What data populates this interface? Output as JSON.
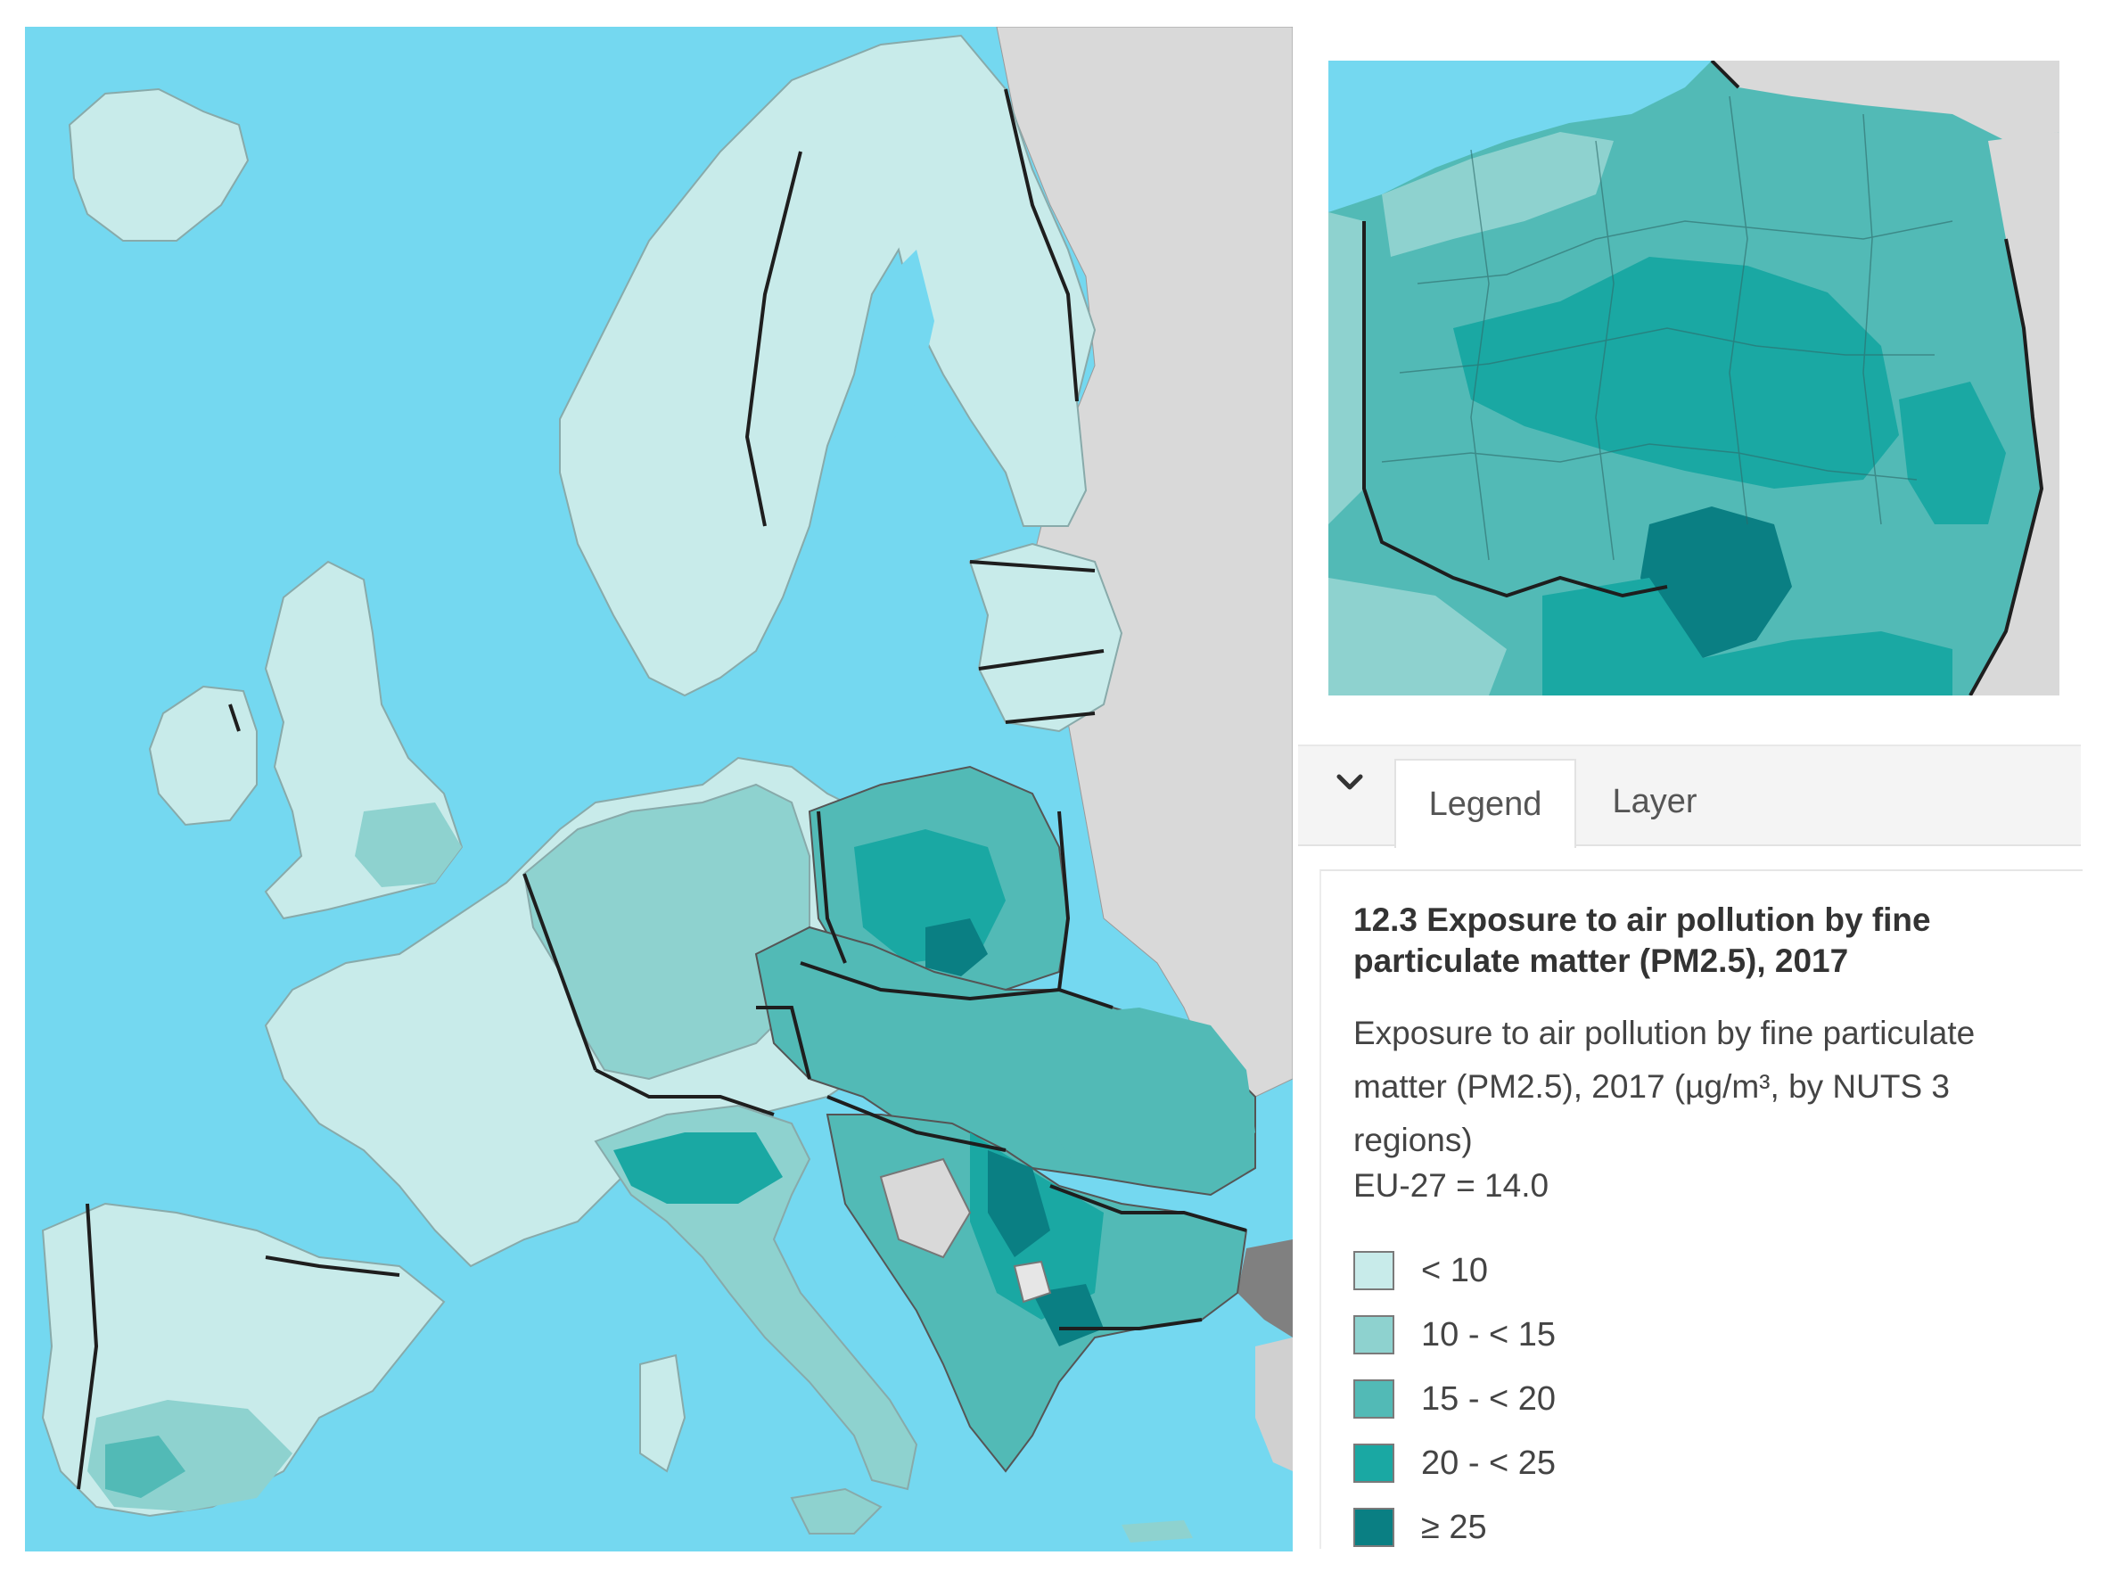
{
  "colors": {
    "sea": "#74d8f0",
    "non_eu_land": "#d9d9d9",
    "class_1": "#c8ebea",
    "class_2": "#8ed2cf",
    "class_3": "#52bab6",
    "class_4": "#1aa8a3",
    "class_5": "#0a7f83",
    "border": "#1e1e1e"
  },
  "panel": {
    "collapse_icon": "chevron-down-icon",
    "tabs": [
      {
        "label": "Legend",
        "active": true
      },
      {
        "label": "Layer",
        "active": false
      }
    ]
  },
  "legend": {
    "title": "12.3 Exposure to air pollution by fine particulate matter (PM2.5), 2017",
    "description": "Exposure to air pollution by fine particulate matter (PM2.5), 2017 (µg/m³, by NUTS 3 regions)",
    "eu_value": "EU-27 = 14.0",
    "classes": [
      {
        "label": "< 10",
        "color": "#c8ebea"
      },
      {
        "label": "10 - < 15",
        "color": "#8ed2cf"
      },
      {
        "label": "15 - < 20",
        "color": "#52bab6"
      },
      {
        "label": "20 - < 25",
        "color": "#1aa8a3"
      },
      {
        "label": "≥ 25",
        "color": "#0a7f83"
      }
    ]
  }
}
